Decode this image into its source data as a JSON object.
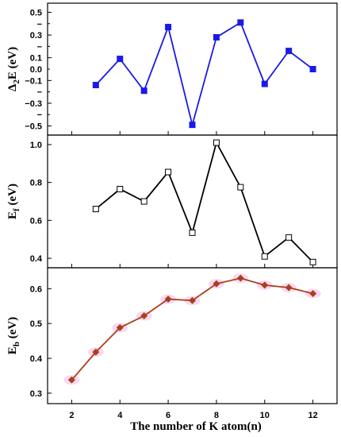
{
  "chart_data": [
    {
      "type": "line",
      "ylabel": "Δ₂E (eV)",
      "x": [
        3,
        4,
        5,
        6,
        7,
        8,
        9,
        10,
        11,
        12
      ],
      "series": [
        {
          "values": [
            -0.14,
            0.09,
            -0.19,
            0.37,
            -0.49,
            0.28,
            0.41,
            -0.13,
            0.16,
            0.0
          ]
        }
      ],
      "ylim": [
        -0.58,
        0.58
      ],
      "yticks": [
        -0.5,
        -0.3,
        -0.1,
        0.1,
        0.3,
        0.5
      ],
      "ytick_labels": [
        "−0.5",
        "−0.3",
        "−0.1",
        "0.1",
        "0.3",
        "0.5"
      ],
      "minor_yticks": [
        -0.4,
        -0.2,
        0.0,
        0.2,
        0.4
      ],
      "minor_ytick_labels": [
        "−",
        "−",
        "0.0",
        "−",
        "−"
      ],
      "line_color": "#1a1ae6",
      "marker": "filled-square",
      "marker_color": "#1a1ae6"
    },
    {
      "type": "line",
      "ylabel": "Ef (eV)",
      "x": [
        3,
        4,
        5,
        6,
        7,
        8,
        9,
        10,
        11,
        12
      ],
      "series": [
        {
          "values": [
            0.66,
            0.765,
            0.7,
            0.855,
            0.535,
            1.01,
            0.775,
            0.41,
            0.51,
            0.38
          ]
        }
      ],
      "ylim": [
        0.35,
        1.05
      ],
      "yticks": [
        0.4,
        0.6,
        0.8,
        1.0
      ],
      "ytick_labels": [
        "0.4",
        "0.6",
        "0.8",
        "1.0"
      ],
      "line_color": "#000000",
      "marker": "open-square",
      "marker_color": "#000000"
    },
    {
      "type": "line",
      "ylabel": "Eb (eV)",
      "xlabel": "The number of K atom(n)",
      "x": [
        2,
        3,
        4,
        5,
        6,
        7,
        8,
        9,
        10,
        11,
        12
      ],
      "series": [
        {
          "values": [
            0.338,
            0.418,
            0.488,
            0.522,
            0.57,
            0.566,
            0.614,
            0.63,
            0.61,
            0.603,
            0.586
          ]
        }
      ],
      "ylim": [
        0.27,
        0.66
      ],
      "yticks": [
        0.3,
        0.4,
        0.5,
        0.6
      ],
      "ytick_labels": [
        "0.3",
        "0.4",
        "0.5",
        "0.6"
      ],
      "xticks": [
        2,
        4,
        6,
        8,
        10,
        12
      ],
      "xtick_labels": [
        "2",
        "4",
        "6",
        "8",
        "10",
        "12"
      ],
      "line_color": "#b03a1a",
      "marker": "filled-diamond",
      "marker_color": "#a8401a",
      "highlight_color": "#f6b8e8"
    }
  ],
  "shared_xlim": [
    1,
    13
  ],
  "shared_xlabel": "The number of K atom(n)"
}
